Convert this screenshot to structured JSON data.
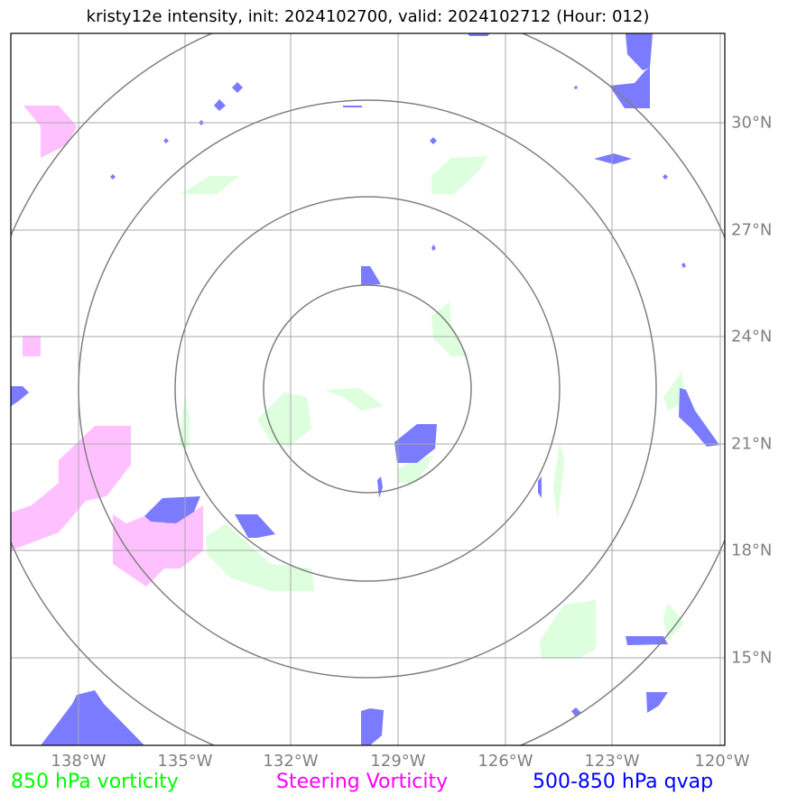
{
  "title": "kristy12e intensity, init: 2024102700, valid: 2024102712 (Hour: 012)",
  "storm_id": "kristy12e",
  "init_time": "2024102700",
  "valid_time": "2024102712",
  "forecast_hour": "012",
  "axes": {
    "lon_ticks": [
      "138°W",
      "135°W",
      "132°W",
      "129°W",
      "126°W",
      "123°W",
      "120°W"
    ],
    "lat_ticks": [
      "30°N",
      "27°N",
      "24°N",
      "21°N",
      "18°N",
      "15°N"
    ]
  },
  "legend": {
    "vort850": {
      "label": "850 hPa vorticity",
      "color": "#00ff00"
    },
    "steering": {
      "label": "Steering Vorticity",
      "color": "#ff00ff"
    },
    "qvap": {
      "label": "500-850 hPa qvap",
      "color": "#0000ff"
    }
  },
  "colors": {
    "vort850_fill": "#ddffdd",
    "steering_fill": "#ffc0ff",
    "qvap_fill": "#7b7bff",
    "grid": "#aaaaaa",
    "range_rings": "#808080"
  }
}
